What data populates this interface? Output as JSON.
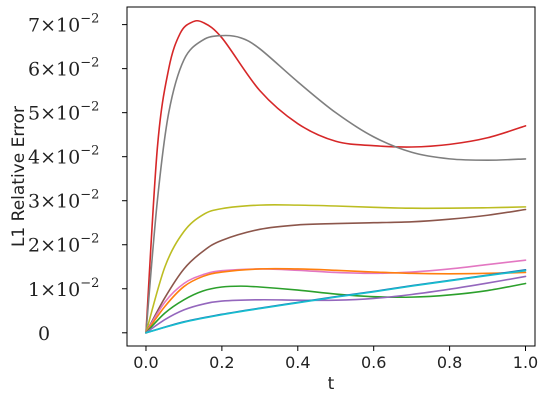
{
  "chart_data": {
    "type": "line",
    "xlabel": "t",
    "ylabel": "L1 Relative Error",
    "xlim": [
      -0.05,
      1.025
    ],
    "ylim": [
      -0.003,
      0.074
    ],
    "grid": false,
    "x_ticks": [
      {
        "value": 0.0,
        "label": "0.0"
      },
      {
        "value": 0.2,
        "label": "0.2"
      },
      {
        "value": 0.4,
        "label": "0.4"
      },
      {
        "value": 0.6,
        "label": "0.6"
      },
      {
        "value": 0.8,
        "label": "0.8"
      },
      {
        "value": 1.0,
        "label": "1.0"
      }
    ],
    "y_ticks": [
      {
        "value": 0.0,
        "mant": "0",
        "exp": ""
      },
      {
        "value": 0.01,
        "mant": "1×10",
        "exp": "−2"
      },
      {
        "value": 0.02,
        "mant": "2×10",
        "exp": "−2"
      },
      {
        "value": 0.03,
        "mant": "3×10",
        "exp": "−2"
      },
      {
        "value": 0.04,
        "mant": "4×10",
        "exp": "−2"
      },
      {
        "value": 0.05,
        "mant": "5×10",
        "exp": "−2"
      },
      {
        "value": 0.06,
        "mant": "6×10",
        "exp": "−2"
      },
      {
        "value": 0.07,
        "mant": "7×10",
        "exp": "−2"
      }
    ],
    "series": [
      {
        "color": "#d62728",
        "x": [
          0,
          0.03,
          0.06,
          0.09,
          0.12,
          0.15,
          0.2,
          0.3,
          0.4,
          0.5,
          0.6,
          0.7,
          0.8,
          0.9,
          1.0
        ],
        "y": [
          0,
          0.042,
          0.06,
          0.068,
          0.0705,
          0.0705,
          0.067,
          0.055,
          0.0475,
          0.0435,
          0.0425,
          0.0422,
          0.0428,
          0.0443,
          0.047
        ]
      },
      {
        "color": "#7f7f7f",
        "x": [
          0,
          0.03,
          0.06,
          0.1,
          0.15,
          0.2,
          0.25,
          0.3,
          0.4,
          0.5,
          0.6,
          0.7,
          0.8,
          0.9,
          1.0
        ],
        "y": [
          0,
          0.03,
          0.05,
          0.062,
          0.0665,
          0.0675,
          0.067,
          0.0645,
          0.057,
          0.05,
          0.0445,
          0.041,
          0.0395,
          0.0392,
          0.0395
        ]
      },
      {
        "color": "#bcbd22",
        "x": [
          0,
          0.05,
          0.1,
          0.15,
          0.2,
          0.3,
          0.4,
          0.5,
          0.6,
          0.7,
          0.8,
          0.9,
          1.0
        ],
        "y": [
          0,
          0.015,
          0.023,
          0.0268,
          0.0282,
          0.029,
          0.029,
          0.0288,
          0.0285,
          0.0283,
          0.0283,
          0.0284,
          0.0286
        ]
      },
      {
        "color": "#8c564b",
        "x": [
          0,
          0.05,
          0.1,
          0.15,
          0.2,
          0.3,
          0.4,
          0.5,
          0.6,
          0.7,
          0.8,
          0.9,
          1.0
        ],
        "y": [
          0,
          0.008,
          0.0145,
          0.0185,
          0.021,
          0.0235,
          0.0245,
          0.0248,
          0.025,
          0.0252,
          0.0258,
          0.0267,
          0.028
        ]
      },
      {
        "color": "#e377c2",
        "x": [
          0,
          0.05,
          0.1,
          0.15,
          0.2,
          0.3,
          0.4,
          0.5,
          0.6,
          0.7,
          0.8,
          0.9,
          1.0
        ],
        "y": [
          0,
          0.007,
          0.0112,
          0.0132,
          0.0141,
          0.0145,
          0.0142,
          0.0137,
          0.0135,
          0.0138,
          0.0145,
          0.0155,
          0.0165
        ]
      },
      {
        "color": "#ff7f0e",
        "x": [
          0,
          0.05,
          0.1,
          0.15,
          0.2,
          0.3,
          0.4,
          0.5,
          0.6,
          0.7,
          0.8,
          0.9,
          1.0
        ],
        "y": [
          0,
          0.006,
          0.0105,
          0.0128,
          0.0138,
          0.0145,
          0.0145,
          0.0142,
          0.0138,
          0.0135,
          0.0134,
          0.0135,
          0.0137
        ]
      },
      {
        "color": "#2ca02c",
        "x": [
          0,
          0.05,
          0.1,
          0.15,
          0.2,
          0.25,
          0.3,
          0.4,
          0.5,
          0.6,
          0.7,
          0.8,
          0.9,
          1.0
        ],
        "y": [
          0,
          0.0045,
          0.0075,
          0.0095,
          0.0104,
          0.0106,
          0.0104,
          0.0097,
          0.0088,
          0.0082,
          0.0081,
          0.0086,
          0.0096,
          0.0112
        ]
      },
      {
        "color": "#9467bd",
        "x": [
          0,
          0.05,
          0.1,
          0.15,
          0.2,
          0.3,
          0.4,
          0.5,
          0.6,
          0.7,
          0.8,
          0.9,
          1.0
        ],
        "y": [
          0,
          0.003,
          0.0052,
          0.0065,
          0.0072,
          0.0075,
          0.0074,
          0.0074,
          0.0078,
          0.0087,
          0.0099,
          0.0113,
          0.0128
        ]
      },
      {
        "color": "#1f77b4",
        "x": [
          0,
          0.1,
          0.2,
          0.3,
          0.4,
          0.5,
          0.6,
          0.7,
          0.8,
          0.9,
          1.0
        ],
        "y": [
          0,
          0.0025,
          0.0042,
          0.0056,
          0.0069,
          0.0082,
          0.0094,
          0.0107,
          0.0119,
          0.0131,
          0.0143
        ]
      },
      {
        "color": "#17becf",
        "x": [
          0,
          0.1,
          0.2,
          0.3,
          0.4,
          0.5,
          0.6,
          0.7,
          0.8,
          0.9,
          1.0
        ],
        "y": [
          0,
          0.0024,
          0.0041,
          0.0055,
          0.0068,
          0.0081,
          0.0093,
          0.0106,
          0.0118,
          0.013,
          0.0141
        ]
      }
    ]
  }
}
